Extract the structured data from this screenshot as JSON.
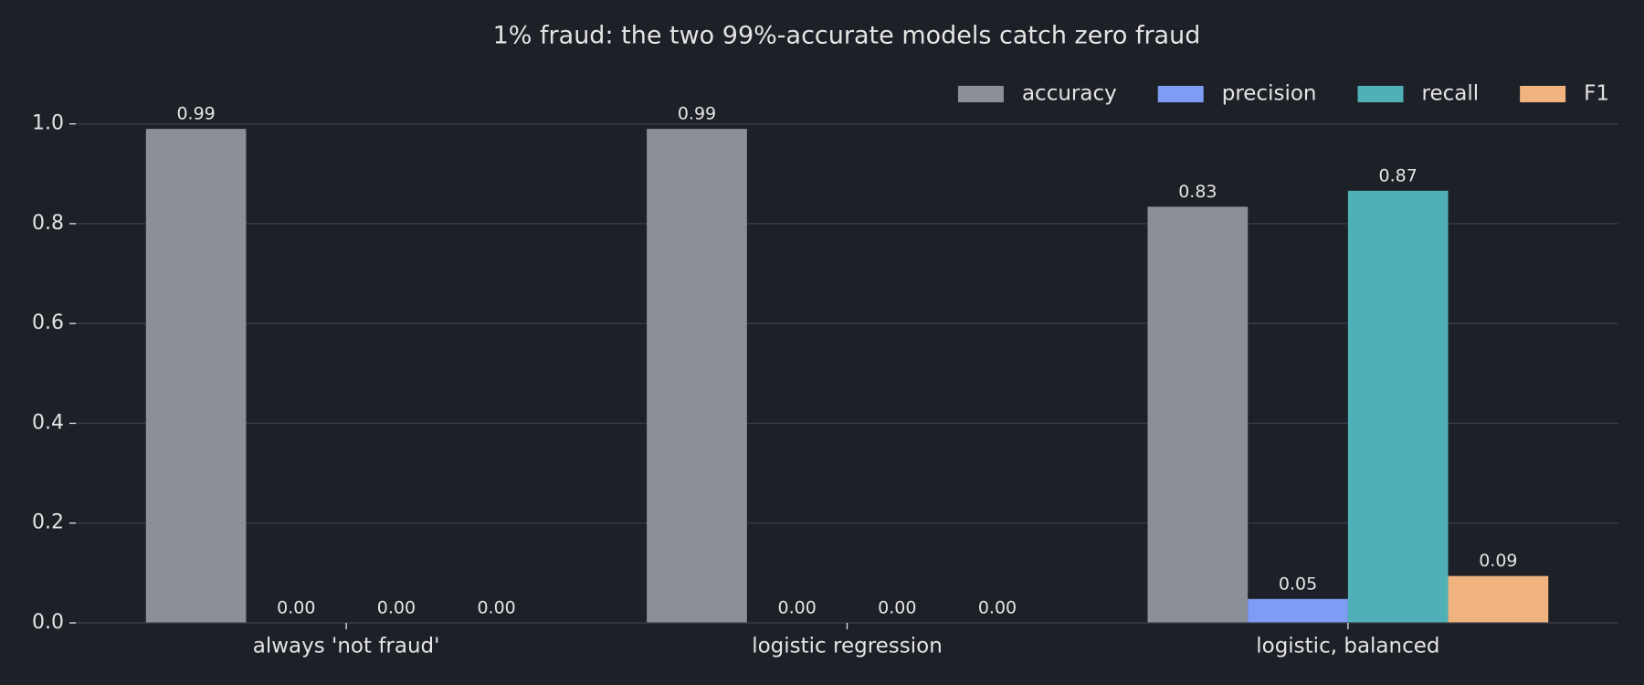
{
  "chart_data": {
    "type": "bar",
    "title": "1% fraud: the two 99%-accurate models catch zero fraud",
    "categories": [
      "always 'not fraud'",
      "logistic regression",
      "logistic, balanced"
    ],
    "series": [
      {
        "name": "accuracy",
        "color": "#8b8f98",
        "values": [
          0.99,
          0.99,
          0.834
        ],
        "value_labels": [
          "0.99",
          "0.99",
          "0.83"
        ]
      },
      {
        "name": "precision",
        "color": "#7f9cf5",
        "values": [
          0,
          0,
          0.048
        ],
        "value_labels": [
          "0.00",
          "0.00",
          "0.05"
        ]
      },
      {
        "name": "recall",
        "color": "#4fb0b8",
        "values": [
          0,
          0,
          0.866
        ],
        "value_labels": [
          "0.00",
          "0.00",
          "0.87"
        ]
      },
      {
        "name": "F1",
        "color": "#f0b27f",
        "values": [
          0,
          0,
          0.094
        ],
        "value_labels": [
          "0.00",
          "0.00",
          "0.09"
        ]
      }
    ],
    "ylim": [
      0,
      1.1
    ],
    "yticks": [
      {
        "value": 0,
        "label": "0.0"
      },
      0.2,
      0.4,
      0.6,
      0.8,
      {
        "value": 1,
        "label": "1.0"
      }
    ],
    "grid": true,
    "legend": "top-right"
  }
}
